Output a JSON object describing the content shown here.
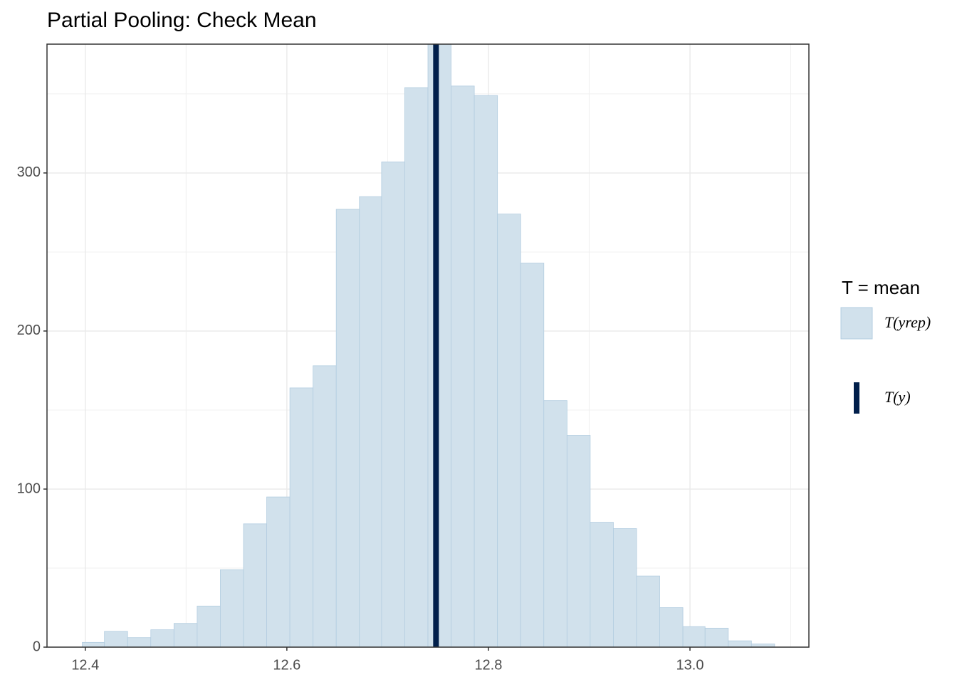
{
  "chart_data": {
    "type": "histogram",
    "title": "Partial Pooling: Check Mean",
    "bins": [
      12.397,
      12.419,
      12.442,
      12.465,
      12.488,
      12.511,
      12.534,
      12.557,
      12.58,
      12.603,
      12.626,
      12.649,
      12.672,
      12.694,
      12.717,
      12.74,
      12.763,
      12.786,
      12.809,
      12.832,
      12.855,
      12.878,
      12.901,
      12.924,
      12.947,
      12.97,
      12.993,
      13.015,
      13.038,
      13.061,
      13.084
    ],
    "series": [
      {
        "name": "T(yrep)",
        "color": "#d1e1ec",
        "edge_color": "#b3cde0",
        "values": [
          3,
          10,
          6,
          11,
          15,
          26,
          49,
          78,
          95,
          164,
          178,
          277,
          285,
          307,
          354,
          390,
          355,
          349,
          274,
          243,
          156,
          134,
          79,
          75,
          45,
          25,
          13,
          12,
          4,
          2
        ]
      }
    ],
    "observed": {
      "name": "T(y)",
      "value": 12.748,
      "color": "#011f4b"
    },
    "legend_title": "T = mean",
    "xlim": [
      12.362,
      13.118
    ],
    "ylim": [
      0,
      381.5
    ],
    "xticks": [
      12.4,
      12.6,
      12.8,
      {
        "value": 13,
        "label": "13.0"
      }
    ],
    "yticks": [
      0,
      100,
      200,
      300
    ],
    "grid": true
  }
}
